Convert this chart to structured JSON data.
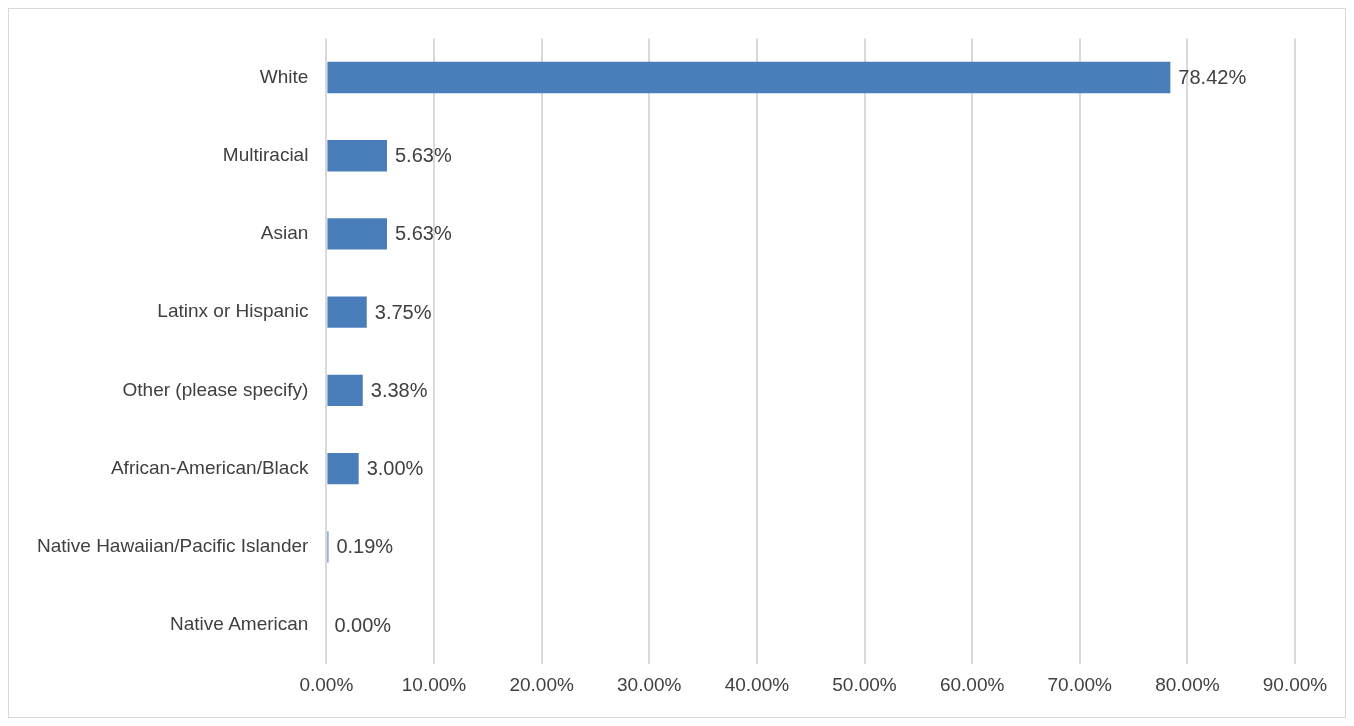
{
  "chart_data": {
    "type": "bar",
    "orientation": "horizontal",
    "categories": [
      "White",
      "Multiracial",
      "Asian",
      "Latinx or Hispanic",
      "Other (please specify)",
      "African-American/Black",
      "Native Hawaiian/Pacific Islander",
      "Native American"
    ],
    "values": [
      78.42,
      5.63,
      5.63,
      3.75,
      3.38,
      3.0,
      0.19,
      0.0
    ],
    "value_labels": [
      "78.42%",
      "5.63%",
      "5.63%",
      "3.75%",
      "3.38%",
      "3.00%",
      "0.19%",
      "0.00%"
    ],
    "color": "#4a7ebb",
    "xlim": [
      0,
      90
    ],
    "xticks": [
      {
        "value": 0,
        "label": "0.00%"
      },
      {
        "value": 10,
        "label": "10.00%"
      },
      {
        "value": 20,
        "label": "20.00%"
      },
      {
        "value": 30,
        "label": "30.00%"
      },
      {
        "value": 40,
        "label": "40.00%"
      },
      {
        "value": 50,
        "label": "50.00%"
      },
      {
        "value": 60,
        "label": "60.00%"
      },
      {
        "value": 70,
        "label": "70.00%"
      },
      {
        "value": 80,
        "label": "80.00%"
      },
      {
        "value": 90,
        "label": "90.00%"
      }
    ],
    "grid": "x",
    "legend": false
  }
}
